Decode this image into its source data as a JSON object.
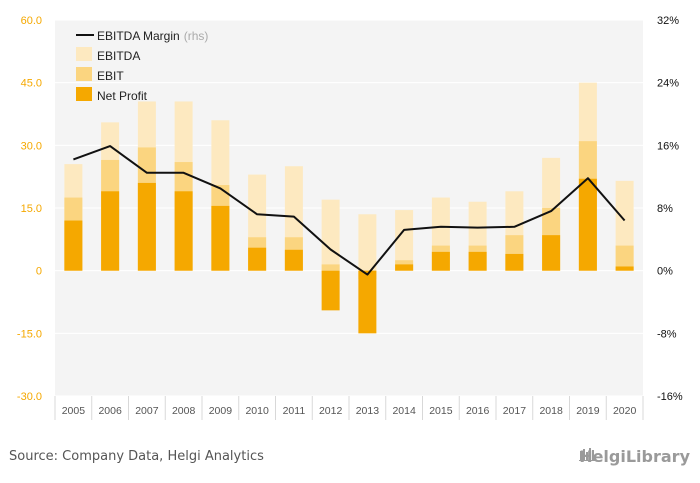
{
  "colors": {
    "ebitda": "#fde9c0",
    "ebit": "#fbd580",
    "net_profit": "#f5a800",
    "margin_line": "#111111",
    "left_axis": "#f5a800",
    "right_axis": "#111111",
    "plot_bg": "#f4f4f4"
  },
  "chart_data": {
    "type": "bar",
    "categories": [
      "2005",
      "2006",
      "2007",
      "2008",
      "2009",
      "2010",
      "2011",
      "2012",
      "2013",
      "2014",
      "2015",
      "2016",
      "2017",
      "2018",
      "2019",
      "2020"
    ],
    "series": [
      {
        "name": "EBITDA",
        "values": [
          25.5,
          35.5,
          40.5,
          40.5,
          36.0,
          23.0,
          25.0,
          17.0,
          13.5,
          14.5,
          17.5,
          16.5,
          19.0,
          27.0,
          45.0,
          21.5
        ]
      },
      {
        "name": "EBIT",
        "values": [
          17.5,
          26.5,
          29.5,
          26.0,
          20.5,
          8.0,
          8.0,
          1.5,
          -2.0,
          2.5,
          6.0,
          6.0,
          8.5,
          15.0,
          31.0,
          6.0
        ]
      },
      {
        "name": "Net Profit",
        "values": [
          12.0,
          19.0,
          21.0,
          19.0,
          15.5,
          5.5,
          5.0,
          -9.5,
          -15.0,
          1.5,
          4.5,
          4.5,
          4.0,
          8.5,
          22.0,
          1.0
        ]
      },
      {
        "name": "EBITDA Margin",
        "axis": "right",
        "values": [
          14.2,
          15.9,
          12.5,
          12.5,
          10.5,
          7.2,
          6.9,
          2.7,
          -0.5,
          5.2,
          5.6,
          5.5,
          5.6,
          7.6,
          11.8,
          6.4
        ]
      }
    ],
    "ylim": [
      -30,
      60
    ],
    "yticks": [
      "60.0",
      "45.0",
      "30.0",
      "15.0",
      "0",
      "-15.0",
      "-30.0"
    ],
    "ylim_right": [
      -16,
      32
    ],
    "yticks_right": [
      "32%",
      "24%",
      "16%",
      "8%",
      "0%",
      "-8%",
      "-16%"
    ],
    "legend": {
      "placement": "top-left",
      "items": [
        {
          "label": "EBITDA Margin",
          "suffix": "(rhs)",
          "kind": "line"
        },
        {
          "label": "EBITDA",
          "kind": "box",
          "series": "EBITDA"
        },
        {
          "label": "EBIT",
          "kind": "box",
          "series": "EBIT"
        },
        {
          "label": "Net Profit",
          "kind": "box",
          "series": "Net Profit"
        }
      ]
    },
    "grid": true
  },
  "footer": {
    "source": "Source: Company Data, Helgi Analytics",
    "brand": "HelgiLibrary"
  }
}
